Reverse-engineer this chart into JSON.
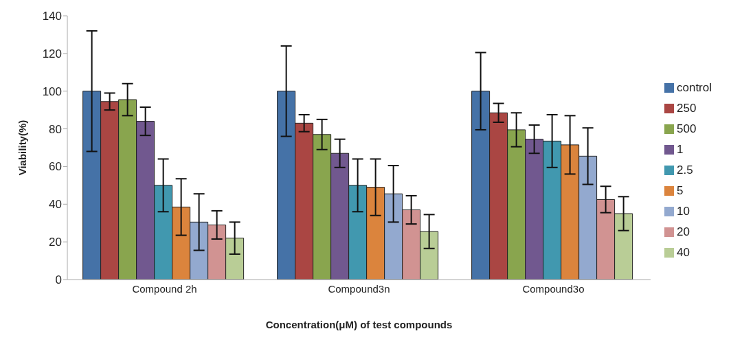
{
  "chart_data": {
    "type": "bar",
    "xlabel": "Concentration(μM) of test compounds",
    "ylabel": "Viability(%)",
    "categories": [
      "Compound 2h",
      "Compound3n",
      "Compound3o"
    ],
    "series": [
      {
        "name": "control",
        "color": "#4572a7",
        "values": [
          100,
          100,
          100
        ],
        "errors": [
          32,
          24,
          20.5
        ]
      },
      {
        "name": "250",
        "color": "#aa4643",
        "values": [
          94.5,
          83,
          88.5
        ],
        "errors": [
          4.5,
          4.5,
          5
        ]
      },
      {
        "name": "500",
        "color": "#89a54e",
        "values": [
          95.5,
          77,
          79.5
        ],
        "errors": [
          8.5,
          8,
          9
        ]
      },
      {
        "name": "1",
        "color": "#71588f",
        "values": [
          84,
          67,
          74.5
        ],
        "errors": [
          7.5,
          7.5,
          7.5
        ]
      },
      {
        "name": "2.5",
        "color": "#4198af",
        "values": [
          50,
          50,
          73.5
        ],
        "errors": [
          14,
          14,
          14
        ]
      },
      {
        "name": "5",
        "color": "#db843d",
        "values": [
          38.5,
          49,
          71.5
        ],
        "errors": [
          15,
          15,
          15.5
        ]
      },
      {
        "name": "10",
        "color": "#93a9cf",
        "values": [
          30.5,
          45.5,
          65.5
        ],
        "errors": [
          15,
          15,
          15
        ]
      },
      {
        "name": "20",
        "color": "#d19392",
        "values": [
          29,
          37,
          42.5
        ],
        "errors": [
          7.5,
          7.5,
          7
        ]
      },
      {
        "name": "40",
        "color": "#b9cd96",
        "values": [
          22,
          25.5,
          35
        ],
        "errors": [
          8.5,
          9,
          9
        ]
      }
    ],
    "ylim": [
      0,
      140
    ],
    "yticks": [
      0,
      20,
      40,
      60,
      80,
      100,
      120,
      140
    ],
    "grid": false,
    "legend": "right"
  }
}
